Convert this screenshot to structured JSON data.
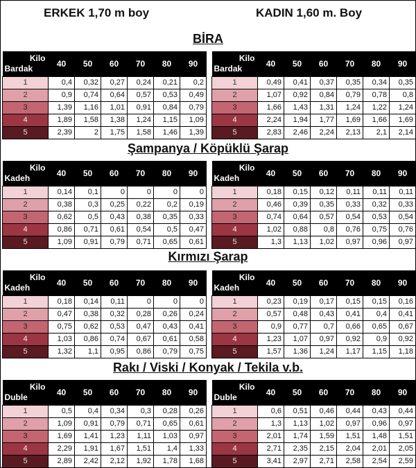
{
  "headers": {
    "male": "ERKEK 1,70 m boy",
    "female": "KADIN 1,60 m. Boy"
  },
  "kilo_label": "Kilo",
  "weights": [
    "40",
    "50",
    "60",
    "70",
    "80",
    "90"
  ],
  "levels": [
    "1",
    "2",
    "3",
    "4",
    "5"
  ],
  "sections": [
    {
      "title": "BİRA",
      "unit": "Bardak",
      "male": [
        [
          "0,4",
          "0,32",
          "0,27",
          "0,24",
          "0,21",
          "0,2"
        ],
        [
          "0,9",
          "0,74",
          "0,64",
          "0,57",
          "0,53",
          "0,49"
        ],
        [
          "1,39",
          "1,16",
          "1,01",
          "0,91",
          "0,84",
          "0,79"
        ],
        [
          "1,89",
          "1,58",
          "1,38",
          "1,24",
          "1,15",
          "1,09"
        ],
        [
          "2,39",
          "2",
          "1,75",
          "1,58",
          "1,46",
          "1,39"
        ]
      ],
      "female": [
        [
          "0,49",
          "0,41",
          "0,37",
          "0,35",
          "0,34",
          "0,35"
        ],
        [
          "1,07",
          "0,92",
          "0,84",
          "0,79",
          "0,78",
          "0,8"
        ],
        [
          "1,66",
          "1,43",
          "1,31",
          "1,24",
          "1,22",
          "1,24"
        ],
        [
          "2,24",
          "1,94",
          "1,77",
          "1,69",
          "1,66",
          "1,69"
        ],
        [
          "2,83",
          "2,46",
          "2,24",
          "2,13",
          "2,1",
          "2,14"
        ]
      ]
    },
    {
      "title": "Şampanya / Köpüklü Şarap",
      "unit": "Kadeh",
      "male": [
        [
          "0,14",
          "0,1",
          "0",
          "0",
          "0",
          "0"
        ],
        [
          "0,38",
          "0,3",
          "0,25",
          "0,22",
          "0,2",
          "0,19"
        ],
        [
          "0,62",
          "0,5",
          "0,43",
          "0,38",
          "0,35",
          "0,33"
        ],
        [
          "0,86",
          "0,71",
          "0,61",
          "0,54",
          "0,5",
          "0,47"
        ],
        [
          "1,09",
          "0,91",
          "0,79",
          "0,71",
          "0,65",
          "0,61"
        ]
      ],
      "female": [
        [
          "0,18",
          "0,15",
          "0,12",
          "0,11",
          "0,11",
          "0,11"
        ],
        [
          "0,46",
          "0,39",
          "0,35",
          "0,33",
          "0,32",
          "0,33"
        ],
        [
          "0,74",
          "0,64",
          "0,57",
          "0,54",
          "0,53",
          "0,54"
        ],
        [
          "1,02",
          "0,88",
          "0,8",
          "0,76",
          "0,75",
          "0,76"
        ],
        [
          "1,3",
          "1,13",
          "1,02",
          "0,97",
          "0,96",
          "0,97"
        ]
      ]
    },
    {
      "title": "Kırmızı Şarap",
      "unit": "Kadeh",
      "male": [
        [
          "0,18",
          "0,14",
          "0,11",
          "0",
          "0",
          "0"
        ],
        [
          "0,47",
          "0,38",
          "0,32",
          "0,28",
          "0,26",
          "0,24"
        ],
        [
          "0,75",
          "0,62",
          "0,53",
          "0,47",
          "0,43",
          "0,41"
        ],
        [
          "1,03",
          "0,86",
          "0,74",
          "0,67",
          "0,61",
          "0,58"
        ],
        [
          "1,32",
          "1,1",
          "0,95",
          "0,86",
          "0,79",
          "0,75"
        ]
      ],
      "female": [
        [
          "0,23",
          "0,19",
          "0,17",
          "0,15",
          "0,15",
          "0,16"
        ],
        [
          "0,57",
          "0,48",
          "0,43",
          "0,41",
          "0,4",
          "0,41"
        ],
        [
          "0,9",
          "0,77",
          "0,7",
          "0,66",
          "0,65",
          "0,67"
        ],
        [
          "1,23",
          "1,07",
          "0,97",
          "0,92",
          "0,9",
          "0,92"
        ],
        [
          "1,57",
          "1,36",
          "1,24",
          "1,17",
          "1,15",
          "1,18"
        ]
      ]
    },
    {
      "title": "Rakı / Viski / Konyak / Tekila v.b.",
      "unit": "Duble",
      "male": [
        [
          "0,5",
          "0,4",
          "0,34",
          "0,3",
          "0,28",
          "0,26"
        ],
        [
          "1,09",
          "0,91",
          "0,79",
          "0,71",
          "0,65",
          "0,61"
        ],
        [
          "1,69",
          "1,41",
          "1,23",
          "1,11",
          "1,03",
          "0,97"
        ],
        [
          "2,29",
          "1,91",
          "1,67",
          "1,51",
          "1,4",
          "1,33"
        ],
        [
          "2,89",
          "2,42",
          "2,12",
          "1,92",
          "1,78",
          "1,68"
        ]
      ],
      "female": [
        [
          "0,6",
          "0,51",
          "0,46",
          "0,44",
          "0,43",
          "0,44"
        ],
        [
          "1,3",
          "1,13",
          "1,02",
          "0,97",
          "0,96",
          "0,97"
        ],
        [
          "2,01",
          "1,74",
          "1,59",
          "1,51",
          "1,48",
          "1,51"
        ],
        [
          "2,71",
          "2,35",
          "2,15",
          "2,04",
          "2,01",
          "2,05"
        ],
        [
          "3,41",
          "2,97",
          "2,71",
          "2,58",
          "2,54",
          "2,59"
        ]
      ]
    }
  ]
}
